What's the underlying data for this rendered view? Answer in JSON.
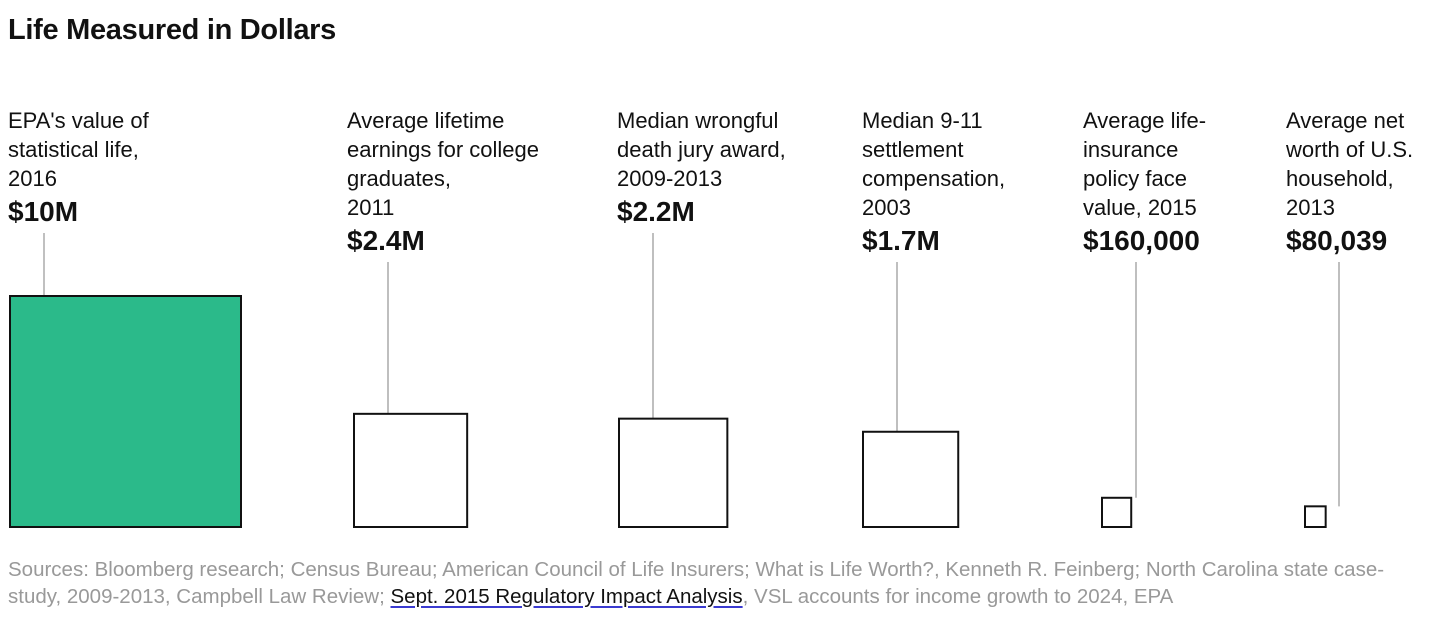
{
  "title": "Life Measured in Dollars",
  "chart_data": {
    "type": "bar",
    "title": "Life Measured in Dollars",
    "encoding": "square area proportional to value",
    "highlight_color": "#2bba8a",
    "box_color": "#ffffff",
    "stroke_color": "#111111",
    "categories": [
      {
        "lines": [
          "EPA's value of",
          "statistical life,",
          "2016"
        ],
        "value_label": "$10M",
        "value": 10000000,
        "highlight": true
      },
      {
        "lines": [
          "Average lifetime",
          "earnings for college",
          "graduates,",
          "2011"
        ],
        "value_label": "$2.4M",
        "value": 2400000,
        "highlight": false
      },
      {
        "lines": [
          "Median wrongful",
          "death jury award,",
          "2009-2013"
        ],
        "value_label": "$2.2M",
        "value": 2200000,
        "highlight": false
      },
      {
        "lines": [
          "Median 9-11",
          "settlement",
          "compensation,",
          "2003"
        ],
        "value_label": "$1.7M",
        "value": 1700000,
        "highlight": false
      },
      {
        "lines": [
          "Average life-",
          "insurance",
          "policy face",
          "value, 2015"
        ],
        "value_label": "$160,000",
        "value": 160000,
        "highlight": false
      },
      {
        "lines": [
          "Average net",
          "worth of U.S.",
          "household,",
          "2013"
        ],
        "value_label": "$80,039",
        "value": 80039,
        "highlight": false
      }
    ]
  },
  "footer": {
    "before_link": "Sources: Bloomberg research; Census Bureau; American Council of Life Insurers; What is Life Worth?, Kenneth R. Feinberg; North Carolina state case-study, 2009-2013, Campbell Law Review; ",
    "link": "Sept. 2015 Regulatory Impact Analysis",
    "after_link": ", VSL accounts for income growth to 2024, EPA"
  }
}
